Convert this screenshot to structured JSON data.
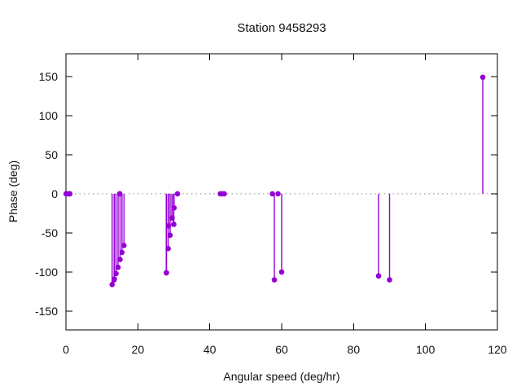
{
  "colors": {
    "point": "#9400d3",
    "stem": "#9400d3",
    "zero_line": "#8a8a8a",
    "border": "#000000",
    "text": "#111111",
    "background": "#ffffff"
  },
  "chart_data": {
    "type": "stem",
    "title": "Station 9458293",
    "xlabel": "Angular speed (deg/hr)",
    "ylabel": "Phase (deg)",
    "xlim": [
      0,
      120
    ],
    "ylim": [
      -174,
      179
    ],
    "x_ticks": [
      0,
      20,
      40,
      60,
      80,
      100,
      120
    ],
    "y_ticks": [
      -150,
      -100,
      -50,
      0,
      50,
      100,
      150
    ],
    "grid": false,
    "zero_line": "dotted",
    "legend": "none",
    "series": [
      {
        "name": "phase",
        "color": "#9400d3",
        "marker": "filled-circle",
        "points": [
          [
            0.04,
            0
          ],
          [
            0.08,
            0
          ],
          [
            0.54,
            0
          ],
          [
            1.02,
            0
          ],
          [
            1.1,
            0
          ],
          [
            12.85,
            -116
          ],
          [
            13.4,
            -110
          ],
          [
            13.47,
            -109
          ],
          [
            13.94,
            -102
          ],
          [
            14.5,
            -94
          ],
          [
            14.96,
            0
          ],
          [
            15.0,
            0
          ],
          [
            15.04,
            -84
          ],
          [
            15.59,
            -75
          ],
          [
            16.14,
            -66
          ],
          [
            27.9,
            -101
          ],
          [
            27.97,
            -101
          ],
          [
            28.44,
            -70
          ],
          [
            28.51,
            -41
          ],
          [
            28.98,
            -53
          ],
          [
            29.46,
            -31
          ],
          [
            29.53,
            -31
          ],
          [
            29.96,
            -39
          ],
          [
            30.0,
            -39
          ],
          [
            30.08,
            -18
          ],
          [
            31.02,
            0
          ],
          [
            42.93,
            0
          ],
          [
            43.48,
            0
          ],
          [
            44.03,
            0
          ],
          [
            57.42,
            0
          ],
          [
            57.97,
            -110
          ],
          [
            58.98,
            0
          ],
          [
            60.0,
            -100
          ],
          [
            86.95,
            -105
          ],
          [
            90.0,
            -110
          ],
          [
            115.94,
            149
          ]
        ]
      }
    ]
  }
}
